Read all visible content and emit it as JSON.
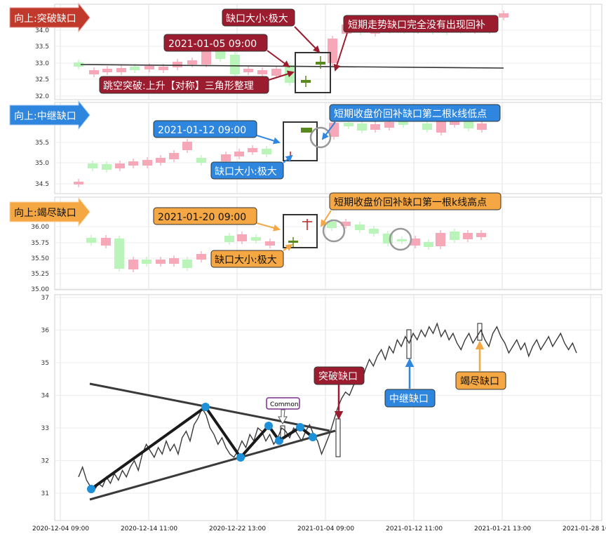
{
  "colors": {
    "up_candle": "#f7a8b8",
    "down_candle": "#b9f5b9",
    "breakaway": "#c0392b",
    "runaway": "#2e86de",
    "exhaustion": "#f4a742",
    "label_dark_red": "#9b1c2e",
    "gap_box": "#333333",
    "price_line": "#333333",
    "pattern_line": "#1a1a1a",
    "pivot_dot": "#1e90d8"
  },
  "panels": [
    {
      "id": "breakaway",
      "tag": "向上:突破缺口",
      "yticks": [
        "34.0",
        "33.5",
        "33.0",
        "32.5",
        "32.0"
      ],
      "annotations": [
        "缺口大小:极大",
        "短期走势缺口完全没有出现回补",
        "2021-01-05 09:00",
        "跳空突破:上升【对称】三角形整理"
      ]
    },
    {
      "id": "runaway",
      "tag": "向上:中继缺口",
      "yticks": [
        "35.5",
        "35.0",
        "34.5"
      ],
      "annotations": [
        "短期收盘价回补缺口第二根k线低点",
        "2021-01-12 09:00",
        "缺口大小:极大"
      ]
    },
    {
      "id": "exhaustion",
      "tag": "向上:竭尽缺口",
      "yticks": [
        "36.00",
        "35.75",
        "35.50",
        "35.25",
        "35.00"
      ],
      "annotations": [
        "短期收盘价回补缺口第一根k线高点",
        "2021-01-20 09:00",
        "缺口大小:极大"
      ]
    }
  ],
  "main": {
    "yticks": [
      "37",
      "36",
      "35",
      "34",
      "33",
      "32",
      "31"
    ],
    "xticks": [
      "2020-12-04 09:00",
      "2020-12-14 11:00",
      "2020-12-22 13:00",
      "2021-01-04 09:00",
      "2021-01-12 11:00",
      "2021-01-21 13:00",
      "2021-01-28 16:00"
    ],
    "labels": {
      "breakaway": "突破缺口",
      "runaway": "中继缺口",
      "exhaustion": "竭尽缺口",
      "common": "Common"
    }
  },
  "chart_data": [
    {
      "type": "line",
      "title": "",
      "ylim": [
        30.2,
        37.0
      ],
      "x_ticks": [
        "2020-12-04 09:00",
        "2020-12-14 11:00",
        "2020-12-22 13:00",
        "2021-01-04 09:00",
        "2021-01-12 11:00",
        "2021-01-21 13:00",
        "2021-01-28 16:00"
      ],
      "series": [
        {
          "values": [
            31.5,
            31.8,
            31.4,
            31.2,
            31.1,
            31.3,
            31.2,
            31.5,
            31.3,
            31.6,
            31.4,
            31.7,
            31.5,
            31.8,
            32.0,
            31.7,
            32.2,
            32.5,
            32.3,
            32.1,
            32.4,
            32.2,
            32.6,
            32.3,
            32.5,
            32.2,
            32.7,
            32.9,
            32.6,
            33.1,
            33.3,
            33.6,
            33.4,
            33.0,
            32.8,
            32.5,
            32.7,
            32.4,
            32.2,
            32.1,
            32.3,
            32.6,
            32.4,
            32.8,
            32.6,
            33.0,
            32.9,
            32.6,
            32.8,
            32.5,
            32.7,
            33.0,
            32.9,
            32.7,
            33.0,
            32.8,
            32.6,
            32.9,
            33.1,
            32.8,
            32.6,
            32.2,
            32.5,
            32.8,
            33.2,
            33.6,
            33.9,
            34.1,
            34.0,
            34.3,
            34.5,
            34.4,
            34.8,
            35.1,
            34.9,
            35.2,
            35.4,
            35.1,
            35.5,
            35.3,
            35.7,
            35.5,
            35.8,
            35.6,
            35.9,
            35.7,
            36.0,
            35.8,
            36.1,
            35.9,
            36.2,
            35.8,
            36.0,
            35.7,
            35.9,
            35.6,
            35.4,
            35.7,
            35.9,
            35.6,
            35.8,
            36.0,
            35.7,
            35.5,
            35.9,
            36.1,
            35.8,
            35.6,
            35.3,
            35.5,
            35.7,
            35.4,
            35.6,
            35.2,
            35.5,
            35.7,
            35.4,
            35.6,
            35.8,
            35.5,
            35.7,
            35.9,
            35.6,
            35.4,
            35.6,
            35.3
          ]
        }
      ],
      "annotations": [
        "突破缺口",
        "中继缺口",
        "竭尽缺口",
        "Common"
      ]
    }
  ]
}
